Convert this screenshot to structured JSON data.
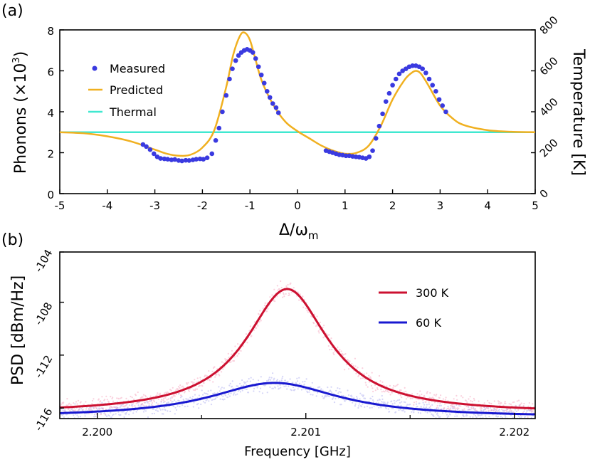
{
  "chart_data": [
    {
      "panel": "(a)",
      "type": "scatter",
      "xlabel_main": "Δ/ω",
      "xlabel_sub": "m",
      "ylabel_left_main": "Phonons (×10",
      "ylabel_left_sup": "3",
      "ylabel_left_end": ")",
      "ylabel_right": "Temperature [K]",
      "xlim": [
        -5,
        5
      ],
      "ylim": [
        0,
        8
      ],
      "ylim_right": [
        0,
        800
      ],
      "xticks": [
        -5,
        -4,
        -3,
        -2,
        -1,
        0,
        1,
        2,
        3,
        4,
        5
      ],
      "xtick_labels": [
        "-5",
        "-4",
        "-3",
        "-2",
        "-1",
        "0",
        "1",
        "2",
        "3",
        "4",
        "5"
      ],
      "yticks": [
        0,
        2,
        4,
        6,
        8
      ],
      "ytick_labels": [
        "0",
        "2",
        "4",
        "6",
        "8"
      ],
      "yticks_right": [
        0,
        200,
        400,
        600,
        800
      ],
      "ytick_labels_right": [
        "0",
        "200",
        "400",
        "600",
        "800"
      ],
      "legend_position": "left",
      "series": [
        {
          "name": "Measured",
          "kind": "scatter",
          "color": "#3a3ae0",
          "x": [
            -3.25,
            -3.18,
            -3.1,
            -3.02,
            -2.95,
            -2.88,
            -2.8,
            -2.73,
            -2.65,
            -2.58,
            -2.5,
            -2.43,
            -2.35,
            -2.28,
            -2.2,
            -2.13,
            -2.05,
            -1.98,
            -1.9,
            -1.8,
            -1.72,
            -1.65,
            -1.58,
            -1.5,
            -1.43,
            -1.37,
            -1.3,
            -1.24,
            -1.18,
            -1.12,
            -1.06,
            -1.0,
            -0.94,
            -0.88,
            -0.82,
            -0.76,
            -0.7,
            -0.64,
            -0.58,
            -0.52,
            -0.45,
            -0.4,
            0.6,
            0.67,
            0.74,
            0.81,
            0.88,
            0.95,
            1.02,
            1.09,
            1.16,
            1.23,
            1.3,
            1.37,
            1.44,
            1.51,
            1.58,
            1.65,
            1.72,
            1.79,
            1.86,
            1.93,
            2.0,
            2.07,
            2.14,
            2.21,
            2.28,
            2.35,
            2.42,
            2.49,
            2.56,
            2.63,
            2.7,
            2.77,
            2.84,
            2.91,
            2.98,
            3.05,
            3.12
          ],
          "y": [
            2.4,
            2.3,
            2.15,
            1.95,
            1.8,
            1.72,
            1.7,
            1.68,
            1.65,
            1.67,
            1.62,
            1.6,
            1.63,
            1.62,
            1.65,
            1.68,
            1.7,
            1.68,
            1.75,
            1.95,
            2.6,
            3.2,
            4.0,
            4.8,
            5.6,
            6.1,
            6.5,
            6.75,
            6.9,
            7.0,
            7.05,
            7.0,
            6.9,
            6.6,
            6.2,
            5.8,
            5.4,
            5.0,
            4.7,
            4.4,
            4.2,
            3.95,
            2.1,
            2.05,
            2.0,
            1.95,
            1.9,
            1.88,
            1.85,
            1.85,
            1.82,
            1.8,
            1.78,
            1.75,
            1.72,
            1.8,
            2.1,
            2.7,
            3.3,
            3.9,
            4.5,
            4.9,
            5.3,
            5.6,
            5.85,
            6.0,
            6.1,
            6.2,
            6.25,
            6.25,
            6.2,
            6.1,
            5.9,
            5.6,
            5.3,
            5.0,
            4.6,
            4.3,
            4.0
          ]
        },
        {
          "name": "Predicted",
          "kind": "line",
          "color": "#f0b020",
          "x": [
            -5.0,
            -4.5,
            -4.0,
            -3.5,
            -3.0,
            -2.75,
            -2.5,
            -2.25,
            -2.0,
            -1.75,
            -1.5,
            -1.35,
            -1.2,
            -1.1,
            -1.0,
            -0.9,
            -0.75,
            -0.5,
            -0.25,
            0.0,
            0.25,
            0.5,
            0.75,
            1.0,
            1.25,
            1.5,
            1.75,
            2.0,
            2.25,
            2.4,
            2.5,
            2.6,
            2.75,
            3.0,
            3.25,
            3.5,
            4.0,
            4.5,
            5.0
          ],
          "y": [
            3.0,
            2.95,
            2.8,
            2.55,
            2.15,
            1.95,
            1.85,
            1.9,
            2.25,
            3.1,
            5.2,
            6.8,
            7.75,
            7.85,
            7.5,
            6.7,
            5.5,
            4.3,
            3.5,
            3.05,
            2.7,
            2.35,
            2.1,
            1.95,
            2.0,
            2.35,
            3.3,
            4.6,
            5.55,
            5.9,
            6.0,
            5.85,
            5.3,
            4.3,
            3.7,
            3.35,
            3.1,
            3.02,
            3.0
          ]
        },
        {
          "name": "Thermal",
          "kind": "line",
          "color": "#40e8d0",
          "x": [
            -5,
            5
          ],
          "y": [
            3.0,
            3.0
          ]
        }
      ]
    },
    {
      "panel": "(b)",
      "type": "line",
      "xlabel": "Frequency [GHz]",
      "ylabel": "PSD [dBm/Hz]",
      "xlim": [
        2.19982,
        2.2021
      ],
      "ylim": [
        -116.8,
        -104.2
      ],
      "xticks": [
        2.2,
        2.201,
        2.202
      ],
      "xtick_labels": [
        "2.200",
        "2.201",
        "2.202"
      ],
      "xticks_minor": [
        2.2005,
        2.2015
      ],
      "yticks": [
        -104,
        -108,
        -112,
        -116
      ],
      "ytick_labels": [
        "-104",
        "-108",
        "-112",
        "-116"
      ],
      "legend_position": "top-right",
      "series": [
        {
          "name": "300 K",
          "color": "#cc1030",
          "noise_color": "#f07098",
          "center": 2.20091,
          "halfwidth": 0.00024,
          "baseline": -116.4,
          "peak": -107.0
        },
        {
          "name": "60 K",
          "color": "#1818d0",
          "noise_color": "#8080e8",
          "center": 2.20085,
          "halfwidth": 0.00038,
          "baseline": -116.7,
          "peak": -114.1
        }
      ]
    }
  ]
}
